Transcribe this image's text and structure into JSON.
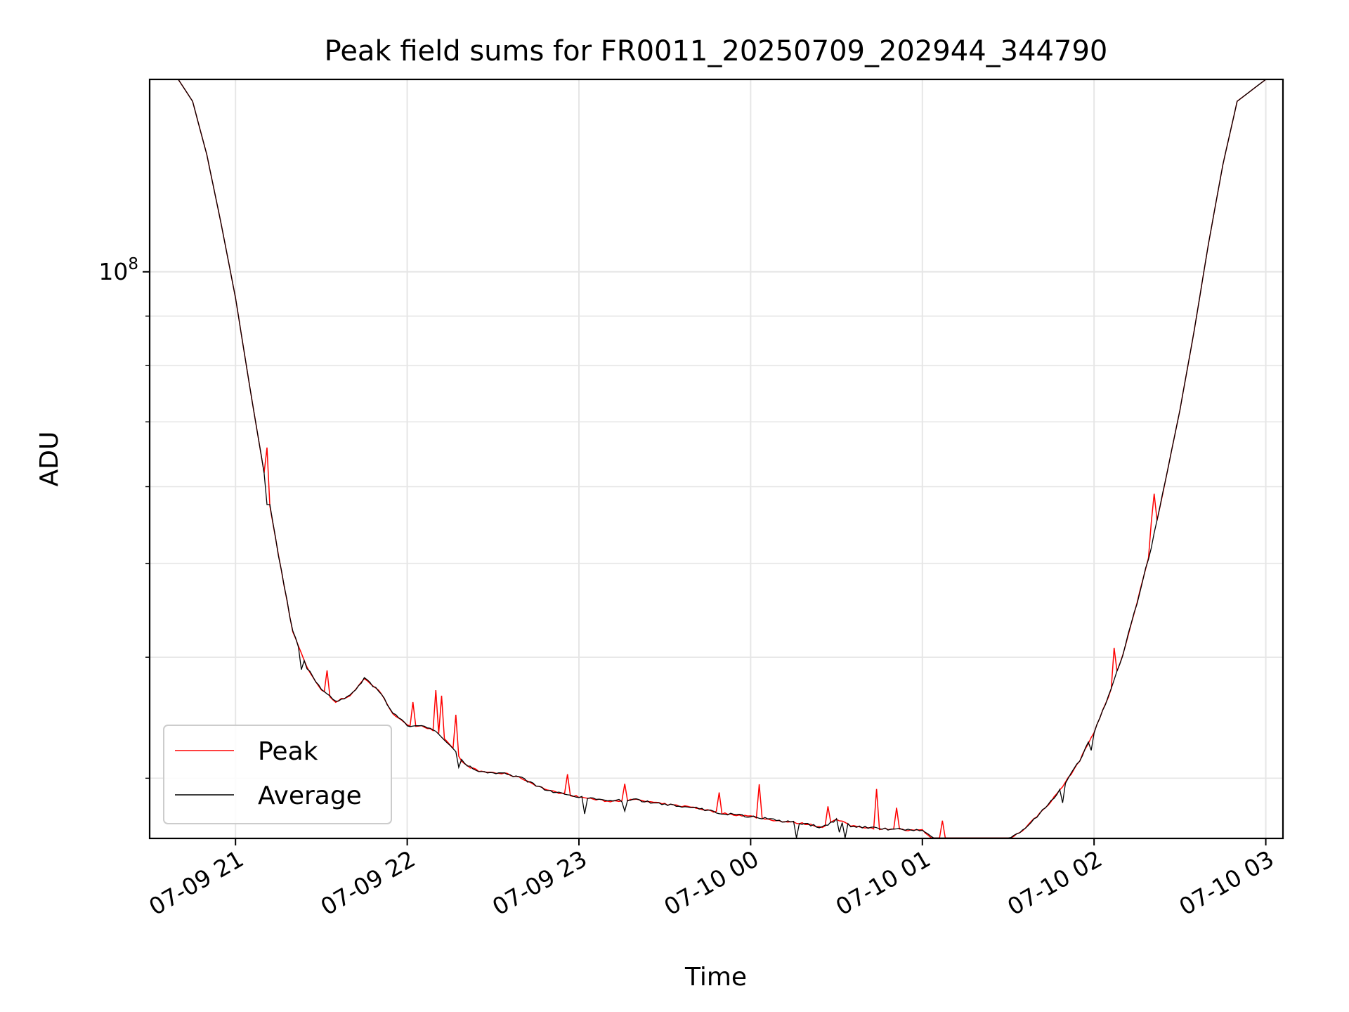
{
  "chart_data": {
    "type": "line",
    "title": "Peak field sums for FR0011_20250709_202944_344790",
    "xlabel": "Time",
    "ylabel": "ADU",
    "y_scale": "log",
    "grid": true,
    "legend_position": "lower-left",
    "x_ticks": [
      "07-09 21",
      "07-09 22",
      "07-09 23",
      "07-10 00",
      "07-10 01",
      "07-10 02",
      "07-10 03"
    ],
    "y_tick_labels": [
      {
        "base": "10",
        "exp": "8",
        "value": 100000000
      }
    ],
    "x_range": [
      "2025-07-09 20:30",
      "2025-07-10 03:06"
    ],
    "y_range": [
      26000000,
      158000000
    ],
    "series": [
      {
        "name": "Peak",
        "color": "#ff0000",
        "style": "spiky",
        "x": [
          "2025-07-09 20:30",
          "2025-07-09 20:40",
          "2025-07-09 20:45",
          "2025-07-09 20:50",
          "2025-07-09 20:55",
          "2025-07-09 21:00",
          "2025-07-09 21:05",
          "2025-07-09 21:10",
          "2025-07-09 21:15",
          "2025-07-09 21:20",
          "2025-07-09 21:25",
          "2025-07-09 21:30",
          "2025-07-09 21:35",
          "2025-07-09 21:40",
          "2025-07-09 21:45",
          "2025-07-09 21:50",
          "2025-07-09 21:55",
          "2025-07-09 22:00",
          "2025-07-09 22:05",
          "2025-07-09 22:10",
          "2025-07-09 22:15",
          "2025-07-09 22:20",
          "2025-07-09 22:25",
          "2025-07-09 22:30",
          "2025-07-09 22:35",
          "2025-07-09 22:40",
          "2025-07-09 22:45",
          "2025-07-09 22:50",
          "2025-07-09 22:55",
          "2025-07-09 23:00",
          "2025-07-09 23:10",
          "2025-07-09 23:20",
          "2025-07-09 23:30",
          "2025-07-09 23:40",
          "2025-07-09 23:50",
          "2025-07-10 00:00",
          "2025-07-10 00:10",
          "2025-07-10 00:20",
          "2025-07-10 00:25",
          "2025-07-10 00:30",
          "2025-07-10 00:35",
          "2025-07-10 00:40",
          "2025-07-10 00:45",
          "2025-07-10 00:50",
          "2025-07-10 00:55",
          "2025-07-10 01:00",
          "2025-07-10 01:05",
          "2025-07-10 01:10",
          "2025-07-10 01:15",
          "2025-07-10 01:20",
          "2025-07-10 01:25",
          "2025-07-10 01:30",
          "2025-07-10 01:35",
          "2025-07-10 01:40",
          "2025-07-10 01:45",
          "2025-07-10 01:50",
          "2025-07-10 01:55",
          "2025-07-10 02:00",
          "2025-07-10 02:05",
          "2025-07-10 02:10",
          "2025-07-10 02:15",
          "2025-07-10 02:20",
          "2025-07-10 02:25",
          "2025-07-10 02:30",
          "2025-07-10 02:35",
          "2025-07-10 02:40",
          "2025-07-10 02:45",
          "2025-07-10 02:50",
          "2025-07-10 03:00",
          "2025-07-10 03:06"
        ],
        "y": [
          158000000,
          158000000,
          150000000,
          132000000,
          112000000,
          94000000,
          76000000,
          62000000,
          51000000,
          42500000,
          39000000,
          37000000,
          36000000,
          36500000,
          38000000,
          37000000,
          35000000,
          34000000,
          34000000,
          33500000,
          32500000,
          31000000,
          30500000,
          30400000,
          30300000,
          30000000,
          29500000,
          29100000,
          28900000,
          28700000,
          28400000,
          28500000,
          28200000,
          28000000,
          27600000,
          27400000,
          27100000,
          26900000,
          26700000,
          27200000,
          26800000,
          26700000,
          26600000,
          26600000,
          26500000,
          26500000,
          25800000,
          25500000,
          25400000,
          25500000,
          25600000,
          25900000,
          26500000,
          27400000,
          28400000,
          29700000,
          31300000,
          33500000,
          36400000,
          40200000,
          45500000,
          52000000,
          61000000,
          72000000,
          87000000,
          107000000,
          129000000,
          150000000,
          158000000,
          158000000
        ]
      },
      {
        "name": "Average",
        "color": "#000000",
        "style": "noisy",
        "x": [
          "2025-07-09 20:30",
          "2025-07-09 20:40",
          "2025-07-09 20:45",
          "2025-07-09 20:50",
          "2025-07-09 20:55",
          "2025-07-09 21:00",
          "2025-07-09 21:05",
          "2025-07-09 21:10",
          "2025-07-09 21:15",
          "2025-07-09 21:20",
          "2025-07-09 21:25",
          "2025-07-09 21:30",
          "2025-07-09 21:35",
          "2025-07-09 21:40",
          "2025-07-09 21:45",
          "2025-07-09 21:50",
          "2025-07-09 21:55",
          "2025-07-09 22:00",
          "2025-07-09 22:05",
          "2025-07-09 22:10",
          "2025-07-09 22:15",
          "2025-07-09 22:20",
          "2025-07-09 22:25",
          "2025-07-09 22:30",
          "2025-07-09 22:35",
          "2025-07-09 22:40",
          "2025-07-09 22:45",
          "2025-07-09 22:50",
          "2025-07-09 22:55",
          "2025-07-09 23:00",
          "2025-07-09 23:10",
          "2025-07-09 23:20",
          "2025-07-09 23:30",
          "2025-07-09 23:40",
          "2025-07-09 23:50",
          "2025-07-10 00:00",
          "2025-07-10 00:10",
          "2025-07-10 00:20",
          "2025-07-10 00:25",
          "2025-07-10 00:30",
          "2025-07-10 00:35",
          "2025-07-10 00:40",
          "2025-07-10 00:45",
          "2025-07-10 00:50",
          "2025-07-10 00:55",
          "2025-07-10 01:00",
          "2025-07-10 01:05",
          "2025-07-10 01:10",
          "2025-07-10 01:15",
          "2025-07-10 01:20",
          "2025-07-10 01:25",
          "2025-07-10 01:30",
          "2025-07-10 01:35",
          "2025-07-10 01:40",
          "2025-07-10 01:45",
          "2025-07-10 01:50",
          "2025-07-10 01:55",
          "2025-07-10 02:00",
          "2025-07-10 02:05",
          "2025-07-10 02:10",
          "2025-07-10 02:15",
          "2025-07-10 02:20",
          "2025-07-10 02:25",
          "2025-07-10 02:30",
          "2025-07-10 02:35",
          "2025-07-10 02:40",
          "2025-07-10 02:45",
          "2025-07-10 02:50",
          "2025-07-10 03:00",
          "2025-07-10 03:06"
        ],
        "y": [
          158000000,
          158000000,
          150000000,
          132000000,
          112000000,
          94000000,
          76000000,
          62000000,
          51000000,
          42500000,
          39000000,
          37000000,
          36000000,
          36500000,
          38000000,
          37000000,
          35000000,
          34000000,
          34000000,
          33500000,
          32500000,
          31000000,
          30500000,
          30400000,
          30300000,
          30000000,
          29500000,
          29100000,
          28900000,
          28700000,
          28400000,
          28500000,
          28200000,
          28000000,
          27600000,
          27400000,
          27100000,
          26900000,
          26700000,
          27200000,
          26800000,
          26700000,
          26600000,
          26600000,
          26500000,
          26500000,
          25800000,
          25500000,
          25400000,
          25500000,
          25600000,
          25900000,
          26500000,
          27400000,
          28400000,
          29700000,
          31300000,
          33500000,
          36400000,
          40200000,
          45500000,
          52000000,
          61000000,
          72000000,
          87000000,
          107000000,
          129000000,
          150000000,
          158000000,
          158000000
        ]
      }
    ]
  }
}
